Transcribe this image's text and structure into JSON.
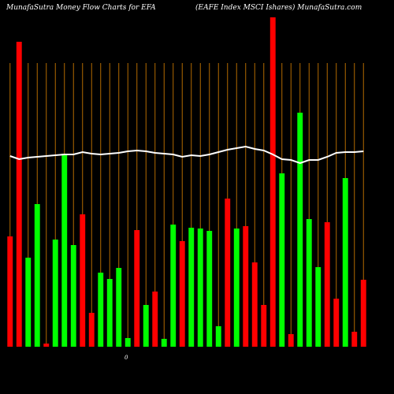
{
  "chart_data": {
    "type": "bar",
    "title": "MunafaSutra  Money Flow  Charts for EFA",
    "subtitle": "(EAFE Index MSCI Ishares) MunafaSutra.com",
    "annotation": "0",
    "categories": [
      null,
      null,
      null,
      null,
      null,
      null,
      null,
      null,
      null,
      null,
      null,
      null,
      null,
      null,
      null,
      null,
      null,
      null,
      null,
      null,
      null,
      null,
      null,
      null,
      null,
      null,
      null,
      null,
      null,
      null,
      null,
      null,
      null,
      null,
      null,
      null,
      null,
      null,
      null,
      null
    ],
    "values": [
      140,
      387,
      113,
      181,
      4,
      136,
      245,
      129,
      168,
      43,
      94,
      86,
      100,
      11,
      148,
      53,
      70,
      10,
      155,
      134,
      151,
      150,
      147,
      26,
      188,
      150,
      153,
      107,
      53,
      418,
      220,
      16,
      297,
      162,
      101,
      158,
      61,
      214,
      19,
      85
    ],
    "bar_colors": [
      "#ff0000",
      "#ff0000",
      "#00ff00",
      "#00ff00",
      "#ff0000",
      "#00ff00",
      "#00ff00",
      "#00ff00",
      "#ff0000",
      "#ff0000",
      "#00ff00",
      "#00ff00",
      "#00ff00",
      "#00ff00",
      "#ff0000",
      "#00ff00",
      "#ff0000",
      "#00ff00",
      "#00ff00",
      "#ff0000",
      "#00ff00",
      "#00ff00",
      "#00ff00",
      "#00ff00",
      "#ff0000",
      "#00ff00",
      "#ff0000",
      "#ff0000",
      "#ff0000",
      "#ff0000",
      "#00ff00",
      "#ff0000",
      "#00ff00",
      "#00ff00",
      "#00ff00",
      "#ff0000",
      "#ff0000",
      "#00ff00",
      "#ff0000",
      "#ff0000"
    ],
    "line": {
      "color": "#ffffff",
      "values": [
        242,
        238,
        240,
        241,
        242,
        243,
        244,
        244,
        247,
        245,
        244,
        245,
        246,
        248,
        249,
        248,
        246,
        245,
        244,
        241,
        243,
        242,
        244,
        247,
        250,
        252,
        254,
        251,
        249,
        244,
        238,
        237,
        233,
        237,
        237,
        241,
        246,
        247,
        247,
        248
      ]
    },
    "ylim": [
      0,
      420
    ],
    "grid_color": "#b36b00"
  }
}
